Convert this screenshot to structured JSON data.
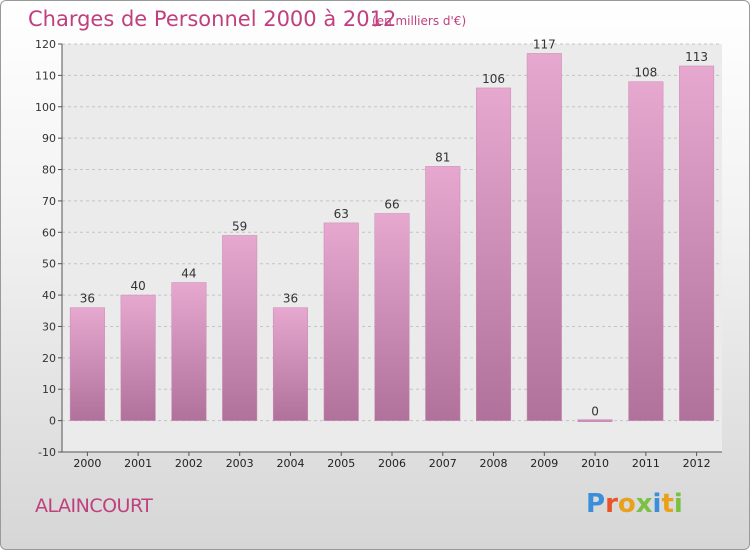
{
  "header": {
    "title": "Charges de Personnel 2000 à 2012",
    "subtitle": "(en milliers d'€)"
  },
  "footer": {
    "place": "ALAINCOURT",
    "brand": "Proxiti",
    "brand_colors": [
      "#3a8fd8",
      "#e8542a",
      "#e9a01a",
      "#7bc043",
      "#3a8fd8",
      "#e9a01a",
      "#7bc043"
    ]
  },
  "colors": {
    "bar_top": "#e6a8cf",
    "bar_bottom": "#b0729b",
    "accent": "#c0407f",
    "plot_bg": "#ebebeb"
  },
  "chart_data": {
    "type": "bar",
    "categories": [
      "2000",
      "2001",
      "2002",
      "2003",
      "2004",
      "2005",
      "2006",
      "2007",
      "2008",
      "2009",
      "2010",
      "2011",
      "2012"
    ],
    "values": [
      36,
      40,
      44,
      59,
      36,
      63,
      66,
      81,
      106,
      117,
      0,
      108,
      113
    ],
    "data_labels": [
      "36",
      "40",
      "44",
      "59",
      "36",
      "63",
      "66",
      "81",
      "106",
      "117",
      "0",
      "108",
      "113"
    ],
    "ylim": [
      -10,
      120
    ],
    "yticks": [
      -10,
      0,
      10,
      20,
      30,
      40,
      50,
      60,
      70,
      80,
      90,
      100,
      110,
      120
    ],
    "grid": true,
    "title": "Charges de Personnel 2000 à 2012",
    "xlabel": "",
    "ylabel": ""
  }
}
